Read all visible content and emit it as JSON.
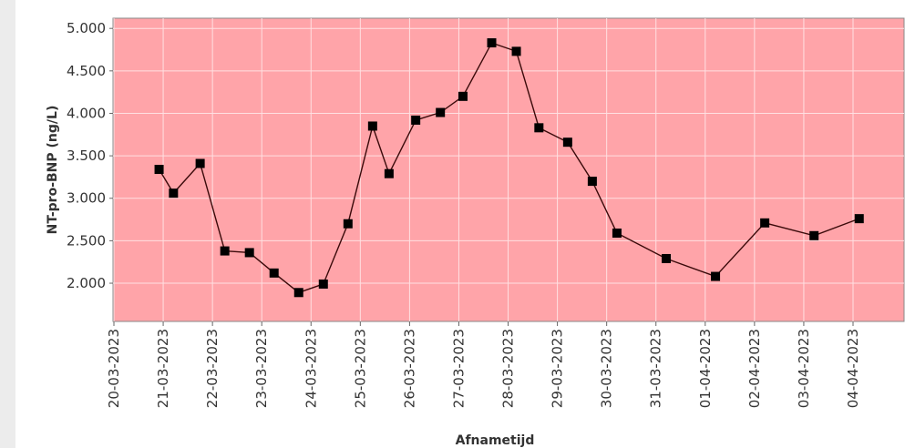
{
  "chart_data": {
    "type": "line",
    "xlabel": "Afnametijd",
    "ylabel": "NT-pro-BNP (ng/L)",
    "ylim": [
      1550,
      5120
    ],
    "xlim": [
      "20-03-2023",
      "04-04-2023"
    ],
    "yticks": [
      {
        "value": 2000,
        "label": "2.000"
      },
      {
        "value": 2500,
        "label": "2.500"
      },
      {
        "value": 3000,
        "label": "3.000"
      },
      {
        "value": 3500,
        "label": "3.500"
      },
      {
        "value": 4000,
        "label": "4.000"
      },
      {
        "value": 4500,
        "label": "4.500"
      },
      {
        "value": 5000,
        "label": "5.000"
      }
    ],
    "xticks": [
      "20-03-2023",
      "21-03-2023",
      "22-03-2023",
      "23-03-2023",
      "24-03-2023",
      "25-03-2023",
      "26-03-2023",
      "27-03-2023",
      "28-03-2023",
      "29-03-2023",
      "30-03-2023",
      "31-03-2023",
      "01-04-2023",
      "02-04-2023",
      "03-04-2023",
      "04-04-2023"
    ],
    "grid": true,
    "background_color": "#ffa4a9",
    "line_color": "#3a0a0a",
    "marker_color": "#000000",
    "series": [
      {
        "x": [
          "20-03-2023 22:00",
          "21-03-2023 05:00",
          "21-03-2023 18:00",
          "22-03-2023 06:00",
          "22-03-2023 18:00",
          "23-03-2023 06:00",
          "23-03-2023 18:00",
          "24-03-2023 06:00",
          "24-03-2023 18:00",
          "25-03-2023 06:00",
          "25-03-2023 14:00",
          "26-03-2023 03:00",
          "26-03-2023 15:00",
          "27-03-2023 02:00",
          "27-03-2023 16:00",
          "28-03-2023 04:00",
          "28-03-2023 15:00",
          "29-03-2023 05:00",
          "29-03-2023 17:00",
          "30-03-2023 05:00",
          "31-03-2023 05:00",
          "01-04-2023 05:00",
          "02-04-2023 05:00",
          "03-04-2023 05:00",
          "04-04-2023 03:00"
        ],
        "values": [
          3340,
          3060,
          3410,
          2380,
          2360,
          2120,
          1890,
          1990,
          2700,
          3850,
          3290,
          3920,
          4010,
          4200,
          4830,
          4730,
          3830,
          3660,
          3200,
          2590,
          2290,
          2080,
          2710,
          2560,
          2760
        ]
      }
    ]
  }
}
